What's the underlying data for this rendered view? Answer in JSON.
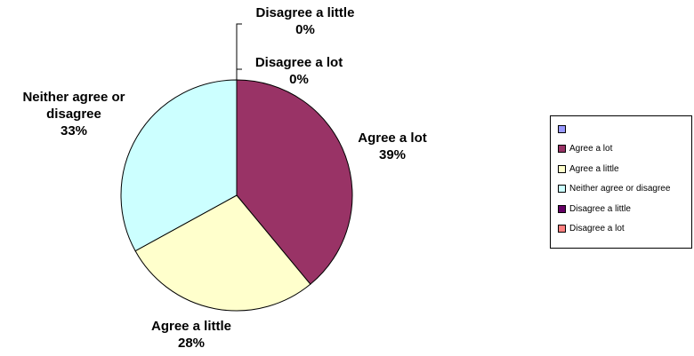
{
  "chart_data": {
    "type": "pie",
    "slices": [
      {
        "label": "Agree a lot",
        "value": 39,
        "display": "39%",
        "color": "#993366"
      },
      {
        "label": "Agree a little",
        "value": 28,
        "display": "28%",
        "color": "#FFFFCC"
      },
      {
        "label": "Neither agree or disagree",
        "value": 33,
        "display": "33%",
        "color": "#CCFFFF"
      },
      {
        "label": "Disagree a little",
        "value": 0,
        "display": "0%",
        "color": "#660066"
      },
      {
        "label": "Disagree a lot",
        "value": 0,
        "display": "0%",
        "color": "#FF8080"
      }
    ],
    "data_labels": [
      {
        "lines": [
          "Agree a lot",
          "39%"
        ]
      },
      {
        "lines": [
          "Agree a little",
          "28%"
        ]
      },
      {
        "lines": [
          "Neither agree or",
          "disagree",
          "33%"
        ]
      },
      {
        "lines": [
          "Disagree a little",
          "0%"
        ]
      },
      {
        "lines": [
          "Disagree a lot",
          "0%"
        ]
      }
    ],
    "legend": {
      "placement": "right",
      "items": [
        {
          "label": "",
          "color": "#9999FF"
        },
        {
          "label": "Agree a lot",
          "color": "#993366"
        },
        {
          "label": "Agree a little",
          "color": "#FFFFCC"
        },
        {
          "label": "Neither agree or disagree",
          "color": "#CCFFFF"
        },
        {
          "label": "Disagree a little",
          "color": "#660066"
        },
        {
          "label": "Disagree a lot",
          "color": "#FF8080"
        }
      ]
    }
  }
}
